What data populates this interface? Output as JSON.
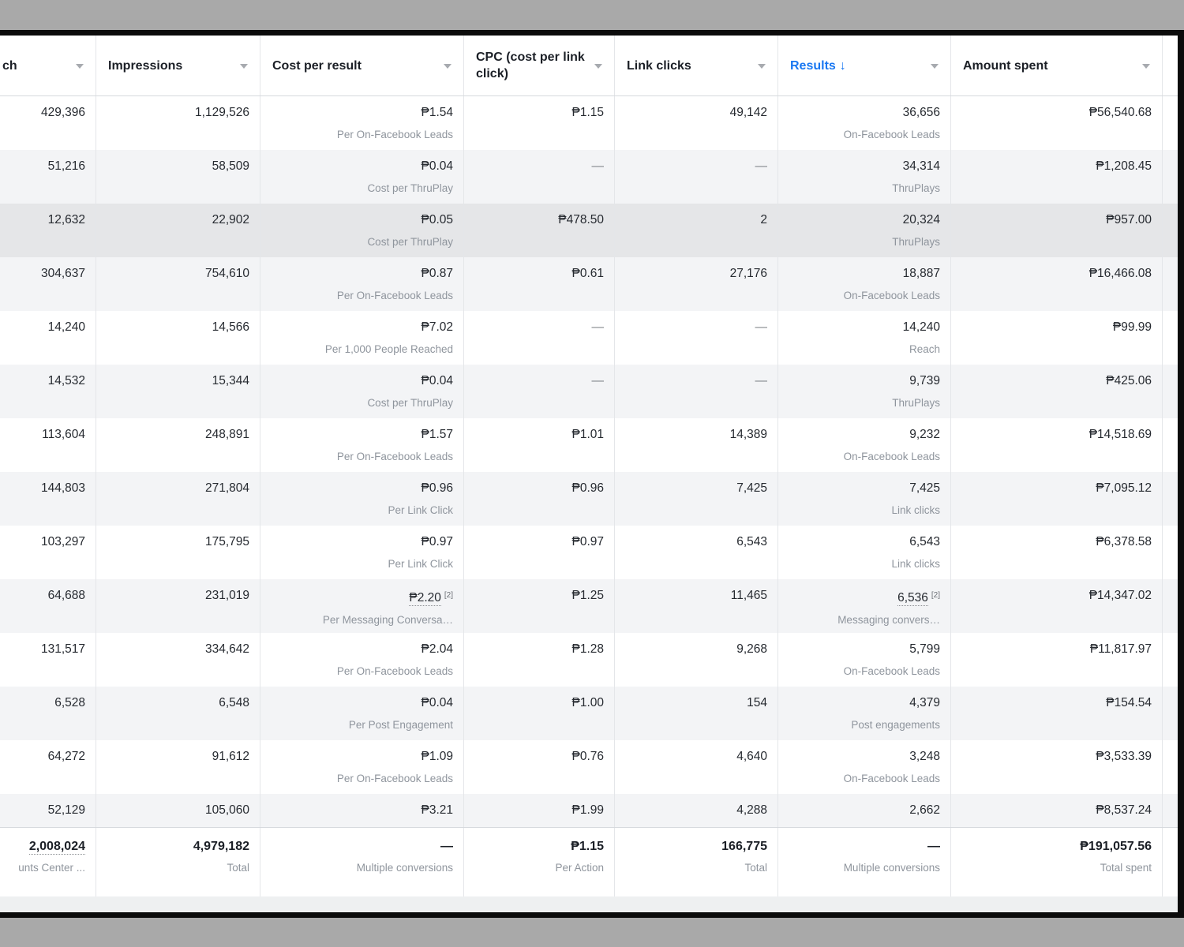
{
  "window": {
    "backdrop_color": "#a9a9a9",
    "frame_color": "#0b0b0b",
    "scroll_strip_color": "#eef0f1"
  },
  "colors": {
    "accent_blue": "#1877f2",
    "row_alt": "#f3f4f6",
    "row_hover": "#e5e6e8",
    "divider": "#e4e6e9",
    "sub_text": "#8f959d",
    "body_text": "#262a30",
    "currency": "PHP ₱"
  },
  "header": {
    "reach_label": "ch",
    "impressions_label": "Impressions",
    "cost_per_result_label": "Cost per result",
    "cpc_label": "CPC (cost per link click)",
    "link_clicks_label": "Link clicks",
    "results_label": "Results",
    "results_sort_arrow": "↓",
    "amount_spent_label": "Amount spent"
  },
  "rows": [
    {
      "reach": "429,396",
      "impressions": "1,129,526",
      "cost": "₱1.54",
      "cost_sub": "Per On-Facebook Leads",
      "cpc": "₱1.15",
      "link_clicks": "49,142",
      "results": "36,656",
      "results_sub": "On-Facebook Leads",
      "amount": "₱56,540.68",
      "state": "default"
    },
    {
      "reach": "51,216",
      "impressions": "58,509",
      "cost": "₱0.04",
      "cost_sub": "Cost per ThruPlay",
      "cpc": "—",
      "link_clicks": "—",
      "results": "34,314",
      "results_sub": "ThruPlays",
      "amount": "₱1,208.45",
      "state": "alt"
    },
    {
      "reach": "12,632",
      "impressions": "22,902",
      "cost": "₱0.05",
      "cost_sub": "Cost per ThruPlay",
      "cpc": "₱478.50",
      "link_clicks": "2",
      "results": "20,324",
      "results_sub": "ThruPlays",
      "amount": "₱957.00",
      "state": "hover"
    },
    {
      "reach": "304,637",
      "impressions": "754,610",
      "cost": "₱0.87",
      "cost_sub": "Per On-Facebook Leads",
      "cpc": "₱0.61",
      "link_clicks": "27,176",
      "results": "18,887",
      "results_sub": "On-Facebook Leads",
      "amount": "₱16,466.08",
      "state": "alt"
    },
    {
      "reach": "14,240",
      "impressions": "14,566",
      "cost": "₱7.02",
      "cost_sub": "Per 1,000 People Reached",
      "cpc": "—",
      "link_clicks": "—",
      "results": "14,240",
      "results_sub": "Reach",
      "amount": "₱99.99",
      "state": "default"
    },
    {
      "reach": "14,532",
      "impressions": "15,344",
      "cost": "₱0.04",
      "cost_sub": "Cost per ThruPlay",
      "cpc": "—",
      "link_clicks": "—",
      "results": "9,739",
      "results_sub": "ThruPlays",
      "amount": "₱425.06",
      "state": "alt"
    },
    {
      "reach": "113,604",
      "impressions": "248,891",
      "cost": "₱1.57",
      "cost_sub": "Per On-Facebook Leads",
      "cpc": "₱1.01",
      "link_clicks": "14,389",
      "results": "9,232",
      "results_sub": "On-Facebook Leads",
      "amount": "₱14,518.69",
      "state": "default"
    },
    {
      "reach": "144,803",
      "impressions": "271,804",
      "cost": "₱0.96",
      "cost_sub": "Per Link Click",
      "cpc": "₱0.96",
      "link_clicks": "7,425",
      "results": "7,425",
      "results_sub": "Link clicks",
      "amount": "₱7,095.12",
      "state": "alt"
    },
    {
      "reach": "103,297",
      "impressions": "175,795",
      "cost": "₱0.97",
      "cost_sub": "Per Link Click",
      "cpc": "₱0.97",
      "link_clicks": "6,543",
      "results": "6,543",
      "results_sub": "Link clicks",
      "amount": "₱6,378.58",
      "state": "default"
    },
    {
      "reach": "64,688",
      "impressions": "231,019",
      "cost": "₱2.20",
      "cost_footnote": "[2]",
      "cost_underline": true,
      "cost_sub": "Per Messaging Conversa…",
      "cpc": "₱1.25",
      "link_clicks": "11,465",
      "results": "6,536",
      "results_footnote": "[2]",
      "results_underline": true,
      "results_sub": "Messaging convers…",
      "amount": "₱14,347.02",
      "state": "alt"
    },
    {
      "reach": "131,517",
      "impressions": "334,642",
      "cost": "₱2.04",
      "cost_sub": "Per On-Facebook Leads",
      "cpc": "₱1.28",
      "link_clicks": "9,268",
      "results": "5,799",
      "results_sub": "On-Facebook Leads",
      "amount": "₱11,817.97",
      "state": "default"
    },
    {
      "reach": "6,528",
      "impressions": "6,548",
      "cost": "₱0.04",
      "cost_sub": "Per Post Engagement",
      "cpc": "₱1.00",
      "link_clicks": "154",
      "results": "4,379",
      "results_sub": "Post engagements",
      "amount": "₱154.54",
      "state": "alt"
    },
    {
      "reach": "64,272",
      "impressions": "91,612",
      "cost": "₱1.09",
      "cost_sub": "Per On-Facebook Leads",
      "cpc": "₱0.76",
      "link_clicks": "4,640",
      "results": "3,248",
      "results_sub": "On-Facebook Leads",
      "amount": "₱3,533.39",
      "state": "default"
    },
    {
      "reach": "52,129",
      "impressions": "105,060",
      "cost": "₱3.21",
      "cost_sub": "",
      "cpc": "₱1.99",
      "link_clicks": "4,288",
      "results": "2,662",
      "results_sub": "",
      "amount": "₱8,537.24",
      "state": "alt",
      "compact": true
    }
  ],
  "total_row": {
    "reach": "2,008,024",
    "reach_sub": "unts Center ...",
    "impressions": "4,979,182",
    "impressions_sub": "Total",
    "cost": "—",
    "cost_sub": "Multiple conversions",
    "cpc": "₱1.15",
    "cpc_sub": "Per Action",
    "link_clicks": "166,775",
    "link_clicks_sub": "Total",
    "results": "—",
    "results_sub": "Multiple conversions",
    "amount": "₱191,057.56",
    "amount_sub": "Total spent"
  }
}
